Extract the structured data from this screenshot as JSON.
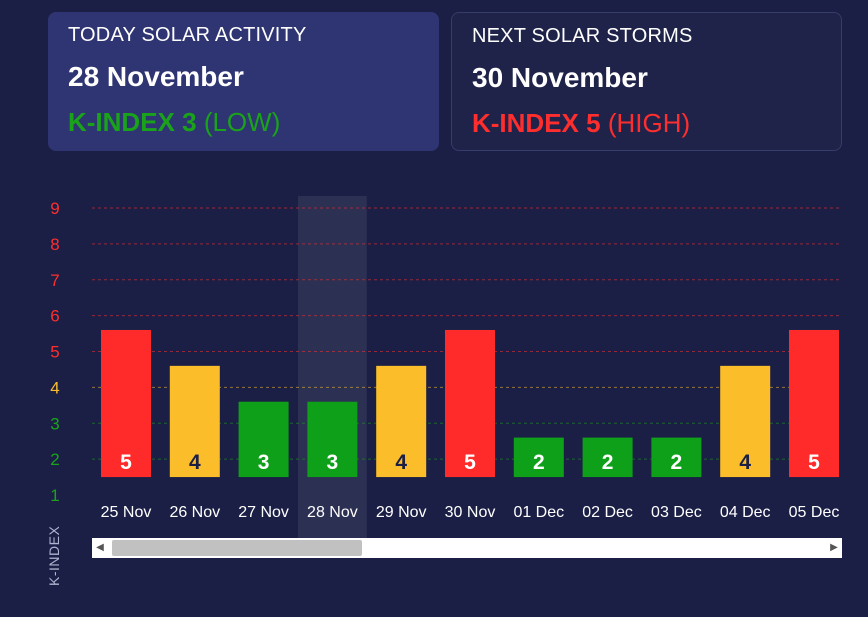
{
  "today": {
    "title": "TODAY SOLAR ACTIVITY",
    "date": "28 November",
    "kindex_strong": "K-INDEX 3",
    "kindex_level": "(LOW)",
    "color": "#1aa31a"
  },
  "next": {
    "title": "NEXT SOLAR STORMS",
    "date": "30 November",
    "kindex_strong": "K-INDEX 5",
    "kindex_level": "(HIGH)",
    "color": "#ff2e2e"
  },
  "chart_data": {
    "type": "bar",
    "ylabel": "K-INDEX",
    "ylim": [
      1,
      9
    ],
    "y_ticks": [
      1,
      2,
      3,
      4,
      5,
      6,
      7,
      8,
      9
    ],
    "categories": [
      "25 Nov",
      "26 Nov",
      "27 Nov",
      "28 Nov",
      "29 Nov",
      "30 Nov",
      "01 Dec",
      "02 Dec",
      "03 Dec",
      "04 Dec",
      "05 Dec"
    ],
    "values": [
      5,
      4,
      3,
      3,
      4,
      5,
      2,
      2,
      2,
      4,
      5
    ],
    "highlighted_category": "28 Nov",
    "colors": {
      "low": "#0fa01a",
      "medium": "#fbbd2a",
      "high": "#ff2a2a"
    },
    "tick_colors": {
      "1": "#1aa31a",
      "2": "#1aa31a",
      "3": "#1aa31a",
      "4": "#fbbd2a",
      "5": "#ff2e2e",
      "6": "#ff2e2e",
      "7": "#ff2e2e",
      "8": "#ff2e2e",
      "9": "#ff2e2e"
    },
    "grid": true
  }
}
